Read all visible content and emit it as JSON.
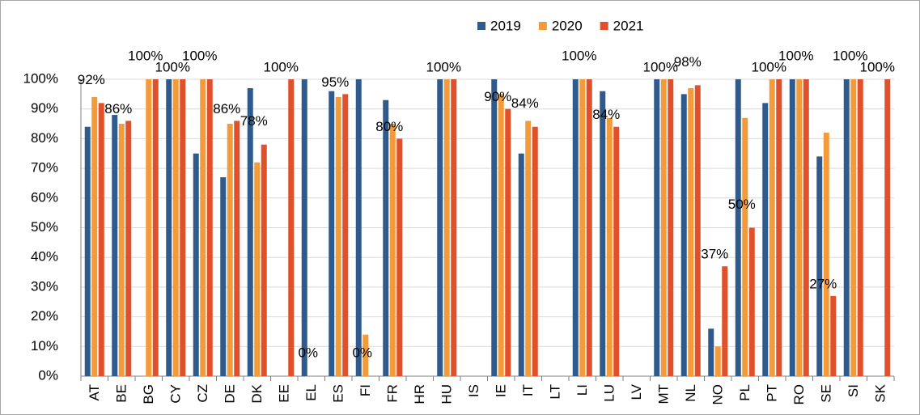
{
  "chart_data": {
    "type": "bar",
    "categories": [
      "AT",
      "BE",
      "BG",
      "CY",
      "CZ",
      "DE",
      "DK",
      "EE",
      "EL",
      "ES",
      "FI",
      "FR",
      "HR",
      "HU",
      "IS",
      "IE",
      "IT",
      "LT",
      "LI",
      "LU",
      "LV",
      "MT",
      "NL",
      "NO",
      "PL",
      "PT",
      "RO",
      "SE",
      "SI",
      "SK"
    ],
    "series": [
      {
        "name": "2019",
        "color": "#2f5b8c",
        "values": [
          84,
          88,
          null,
          100,
          75,
          67,
          97,
          null,
          100,
          96,
          100,
          93,
          null,
          100,
          null,
          100,
          75,
          null,
          100,
          96,
          null,
          100,
          95,
          16,
          100,
          92,
          100,
          74,
          100,
          null
        ]
      },
      {
        "name": "2020",
        "color": "#f39a3a",
        "values": [
          94,
          85,
          100,
          100,
          100,
          85,
          72,
          null,
          null,
          94,
          14,
          85,
          null,
          100,
          null,
          95,
          86,
          null,
          100,
          87,
          null,
          100,
          97,
          10,
          87,
          100,
          100,
          82,
          100,
          null
        ]
      },
      {
        "name": "2021",
        "color": "#e0512b",
        "values": [
          92,
          86,
          100,
          100,
          100,
          86,
          78,
          100,
          0,
          95,
          0,
          80,
          null,
          100,
          null,
          90,
          84,
          null,
          100,
          84,
          null,
          100,
          98,
          37,
          50,
          100,
          100,
          27,
          100,
          100
        ],
        "value_labels": [
          "92%",
          "86%",
          "100%",
          "100%",
          "100%",
          "86%",
          "78%",
          "100%",
          "0%",
          "95%",
          "0%",
          "80%",
          null,
          "100%",
          null,
          "90%",
          "84%",
          null,
          "100%",
          "84%",
          null,
          "100%",
          "98%",
          "37%",
          "50%",
          "100%",
          "100%",
          "27%",
          "100%",
          "100%"
        ]
      }
    ],
    "ylim": [
      0,
      100
    ],
    "yticks": [
      {
        "value": 0,
        "label": "0%"
      },
      {
        "value": 10,
        "label": "10%"
      },
      {
        "value": 20,
        "label": "20%"
      },
      {
        "value": 30,
        "label": "30%"
      },
      {
        "value": 40,
        "label": "40%"
      },
      {
        "value": 50,
        "label": "50%"
      },
      {
        "value": 60,
        "label": "60%"
      },
      {
        "value": 70,
        "label": "70%"
      },
      {
        "value": 80,
        "label": "80%"
      },
      {
        "value": 90,
        "label": "90%"
      },
      {
        "value": 100,
        "label": "100%"
      }
    ],
    "grid": true,
    "legend": "top"
  }
}
